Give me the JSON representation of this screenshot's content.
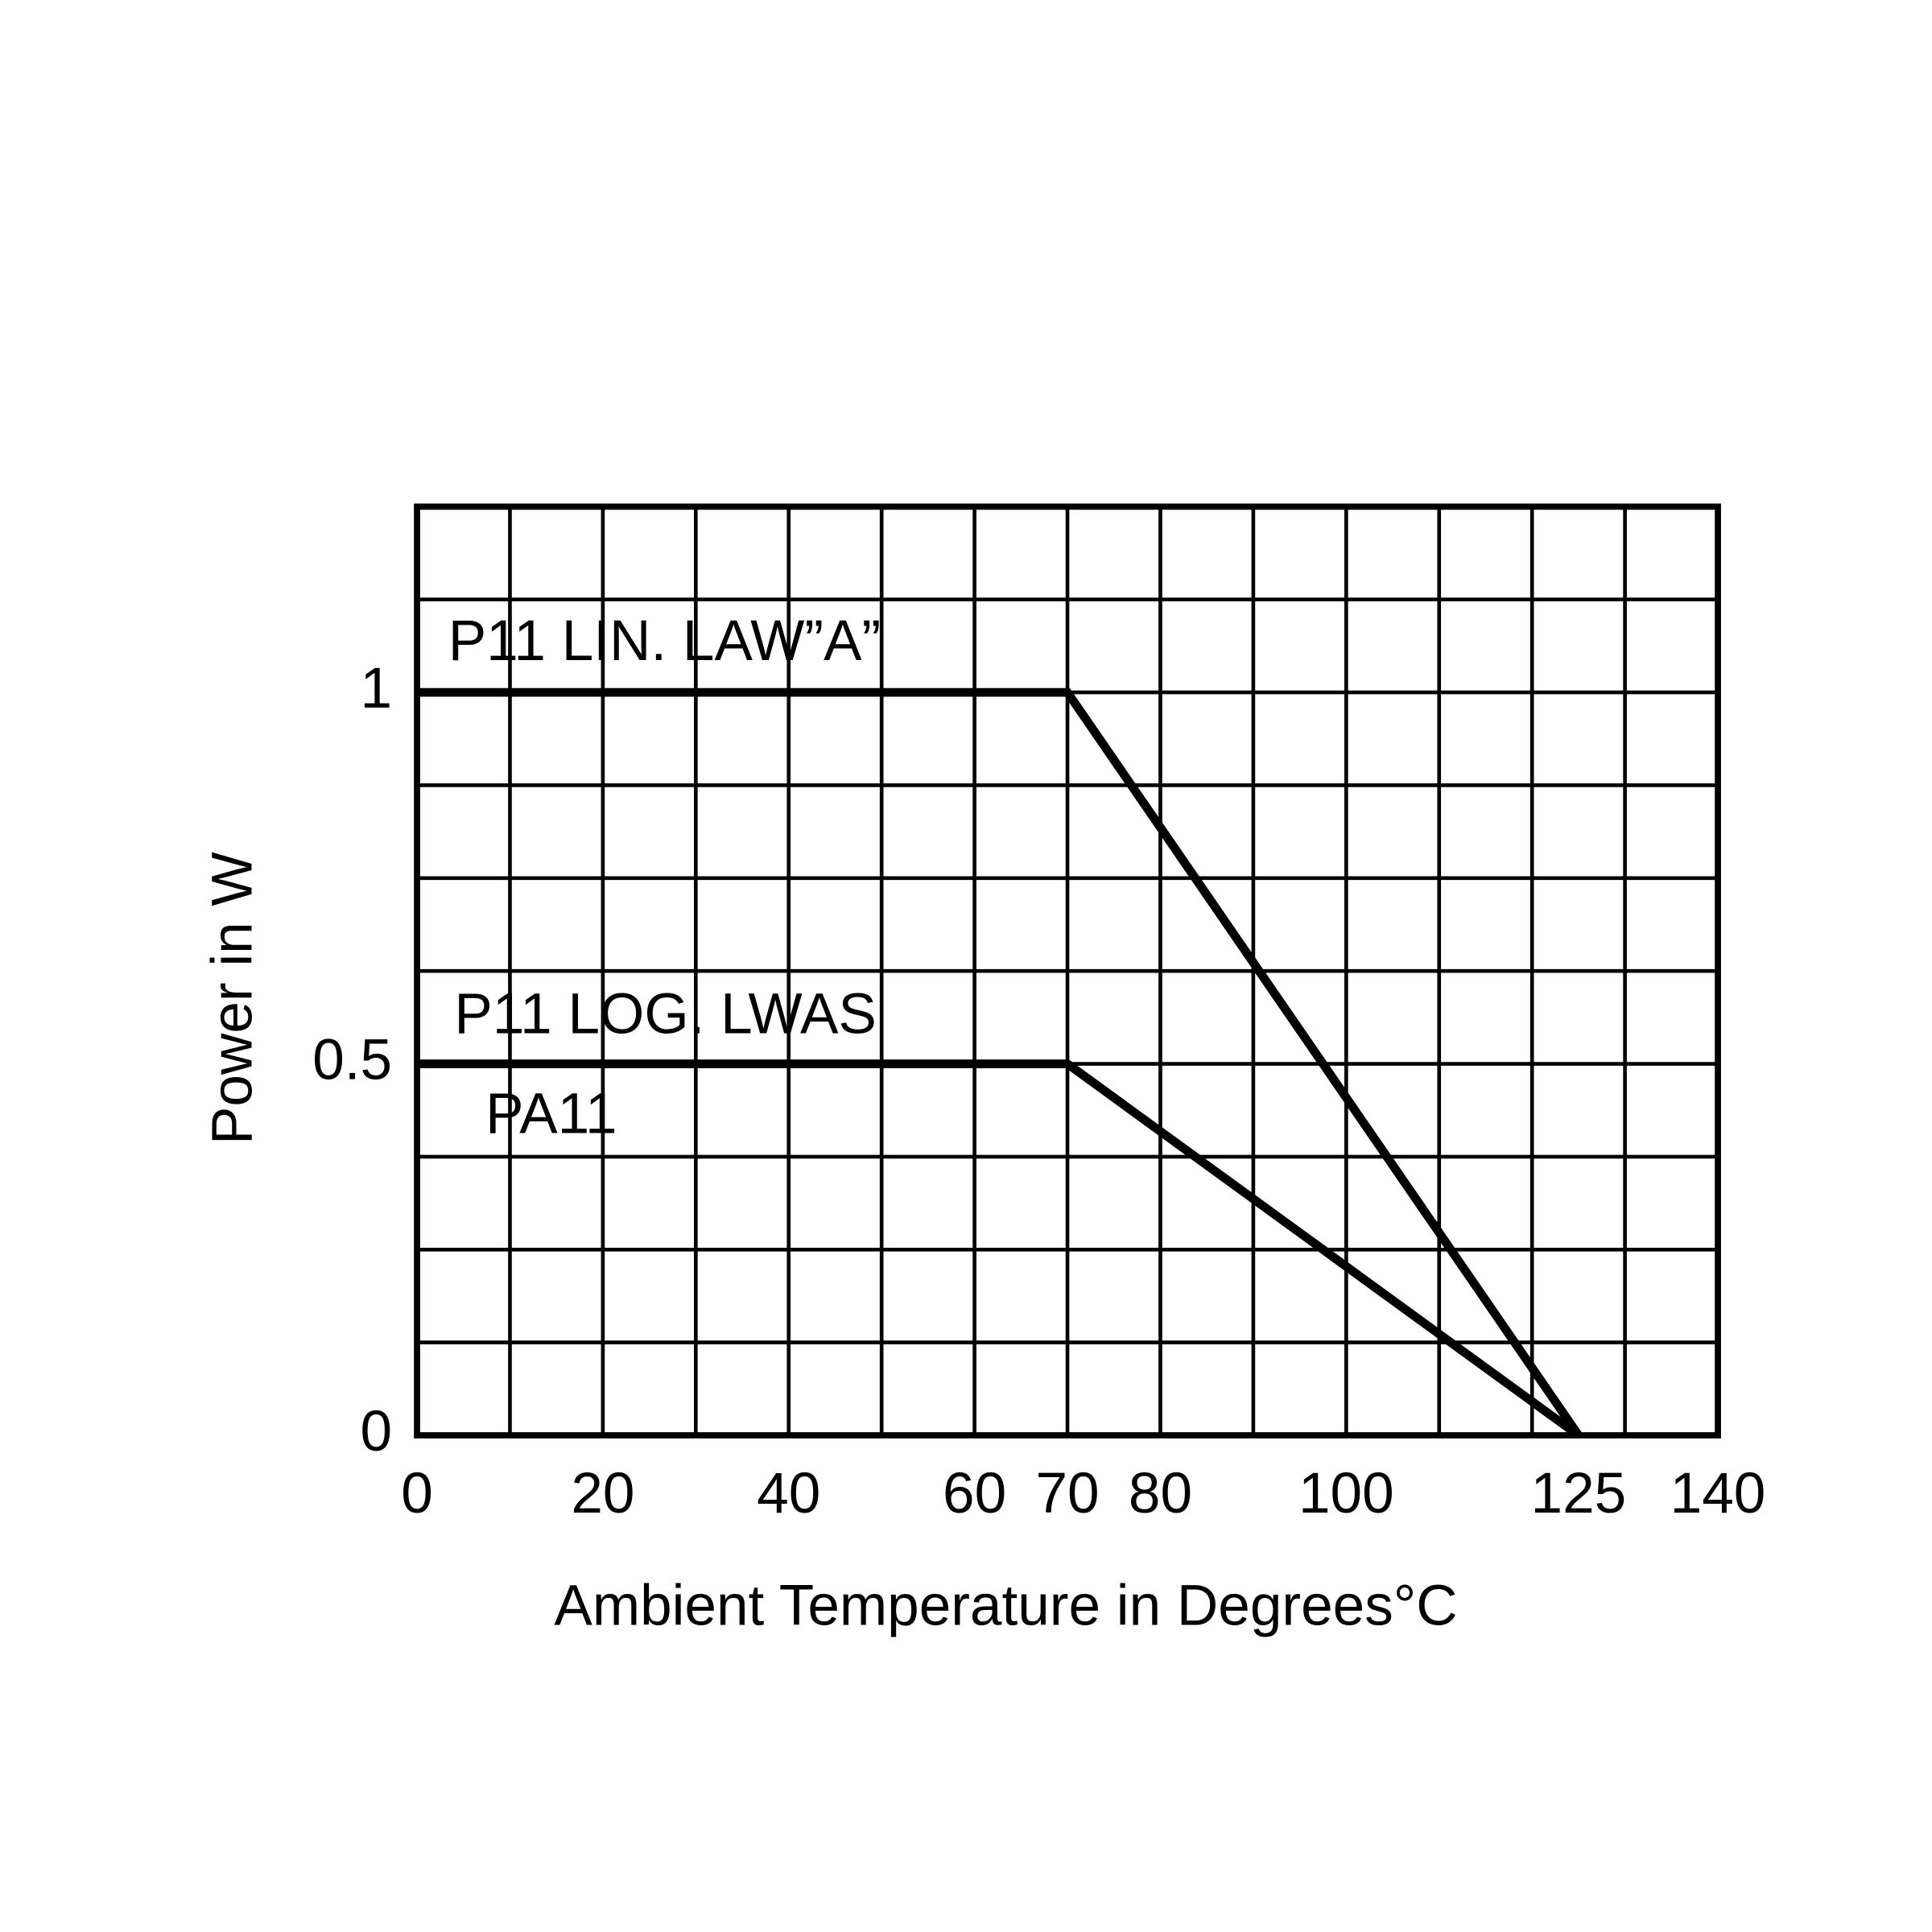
{
  "chart_data": {
    "type": "line",
    "xlabel": "Ambient Temperature in Degrees°C",
    "ylabel": "Power in W",
    "xlim": [
      0,
      140
    ],
    "ylim": [
      0,
      1.25
    ],
    "xticks": [
      0,
      20,
      40,
      60,
      70,
      80,
      100,
      125,
      140
    ],
    "yticks": [
      0,
      0.5,
      1
    ],
    "xgrid": [
      0,
      10,
      20,
      30,
      40,
      50,
      60,
      70,
      80,
      90,
      100,
      110,
      120,
      130,
      140
    ],
    "ygrid": [
      0,
      0.125,
      0.25,
      0.375,
      0.5,
      0.625,
      0.75,
      0.875,
      1,
      1.125,
      1.25
    ],
    "grid": true,
    "series": [
      {
        "name": "P11 LIN. LAW”A”",
        "color": "#000000",
        "x": [
          0,
          70,
          125
        ],
        "values": [
          1,
          1,
          0
        ]
      },
      {
        "name": "P11 LOG. LWAS",
        "color": "#000000",
        "x": [
          0,
          70,
          125
        ],
        "values": [
          0.5,
          0.5,
          0
        ]
      }
    ],
    "annotations": [
      "PA11"
    ]
  }
}
